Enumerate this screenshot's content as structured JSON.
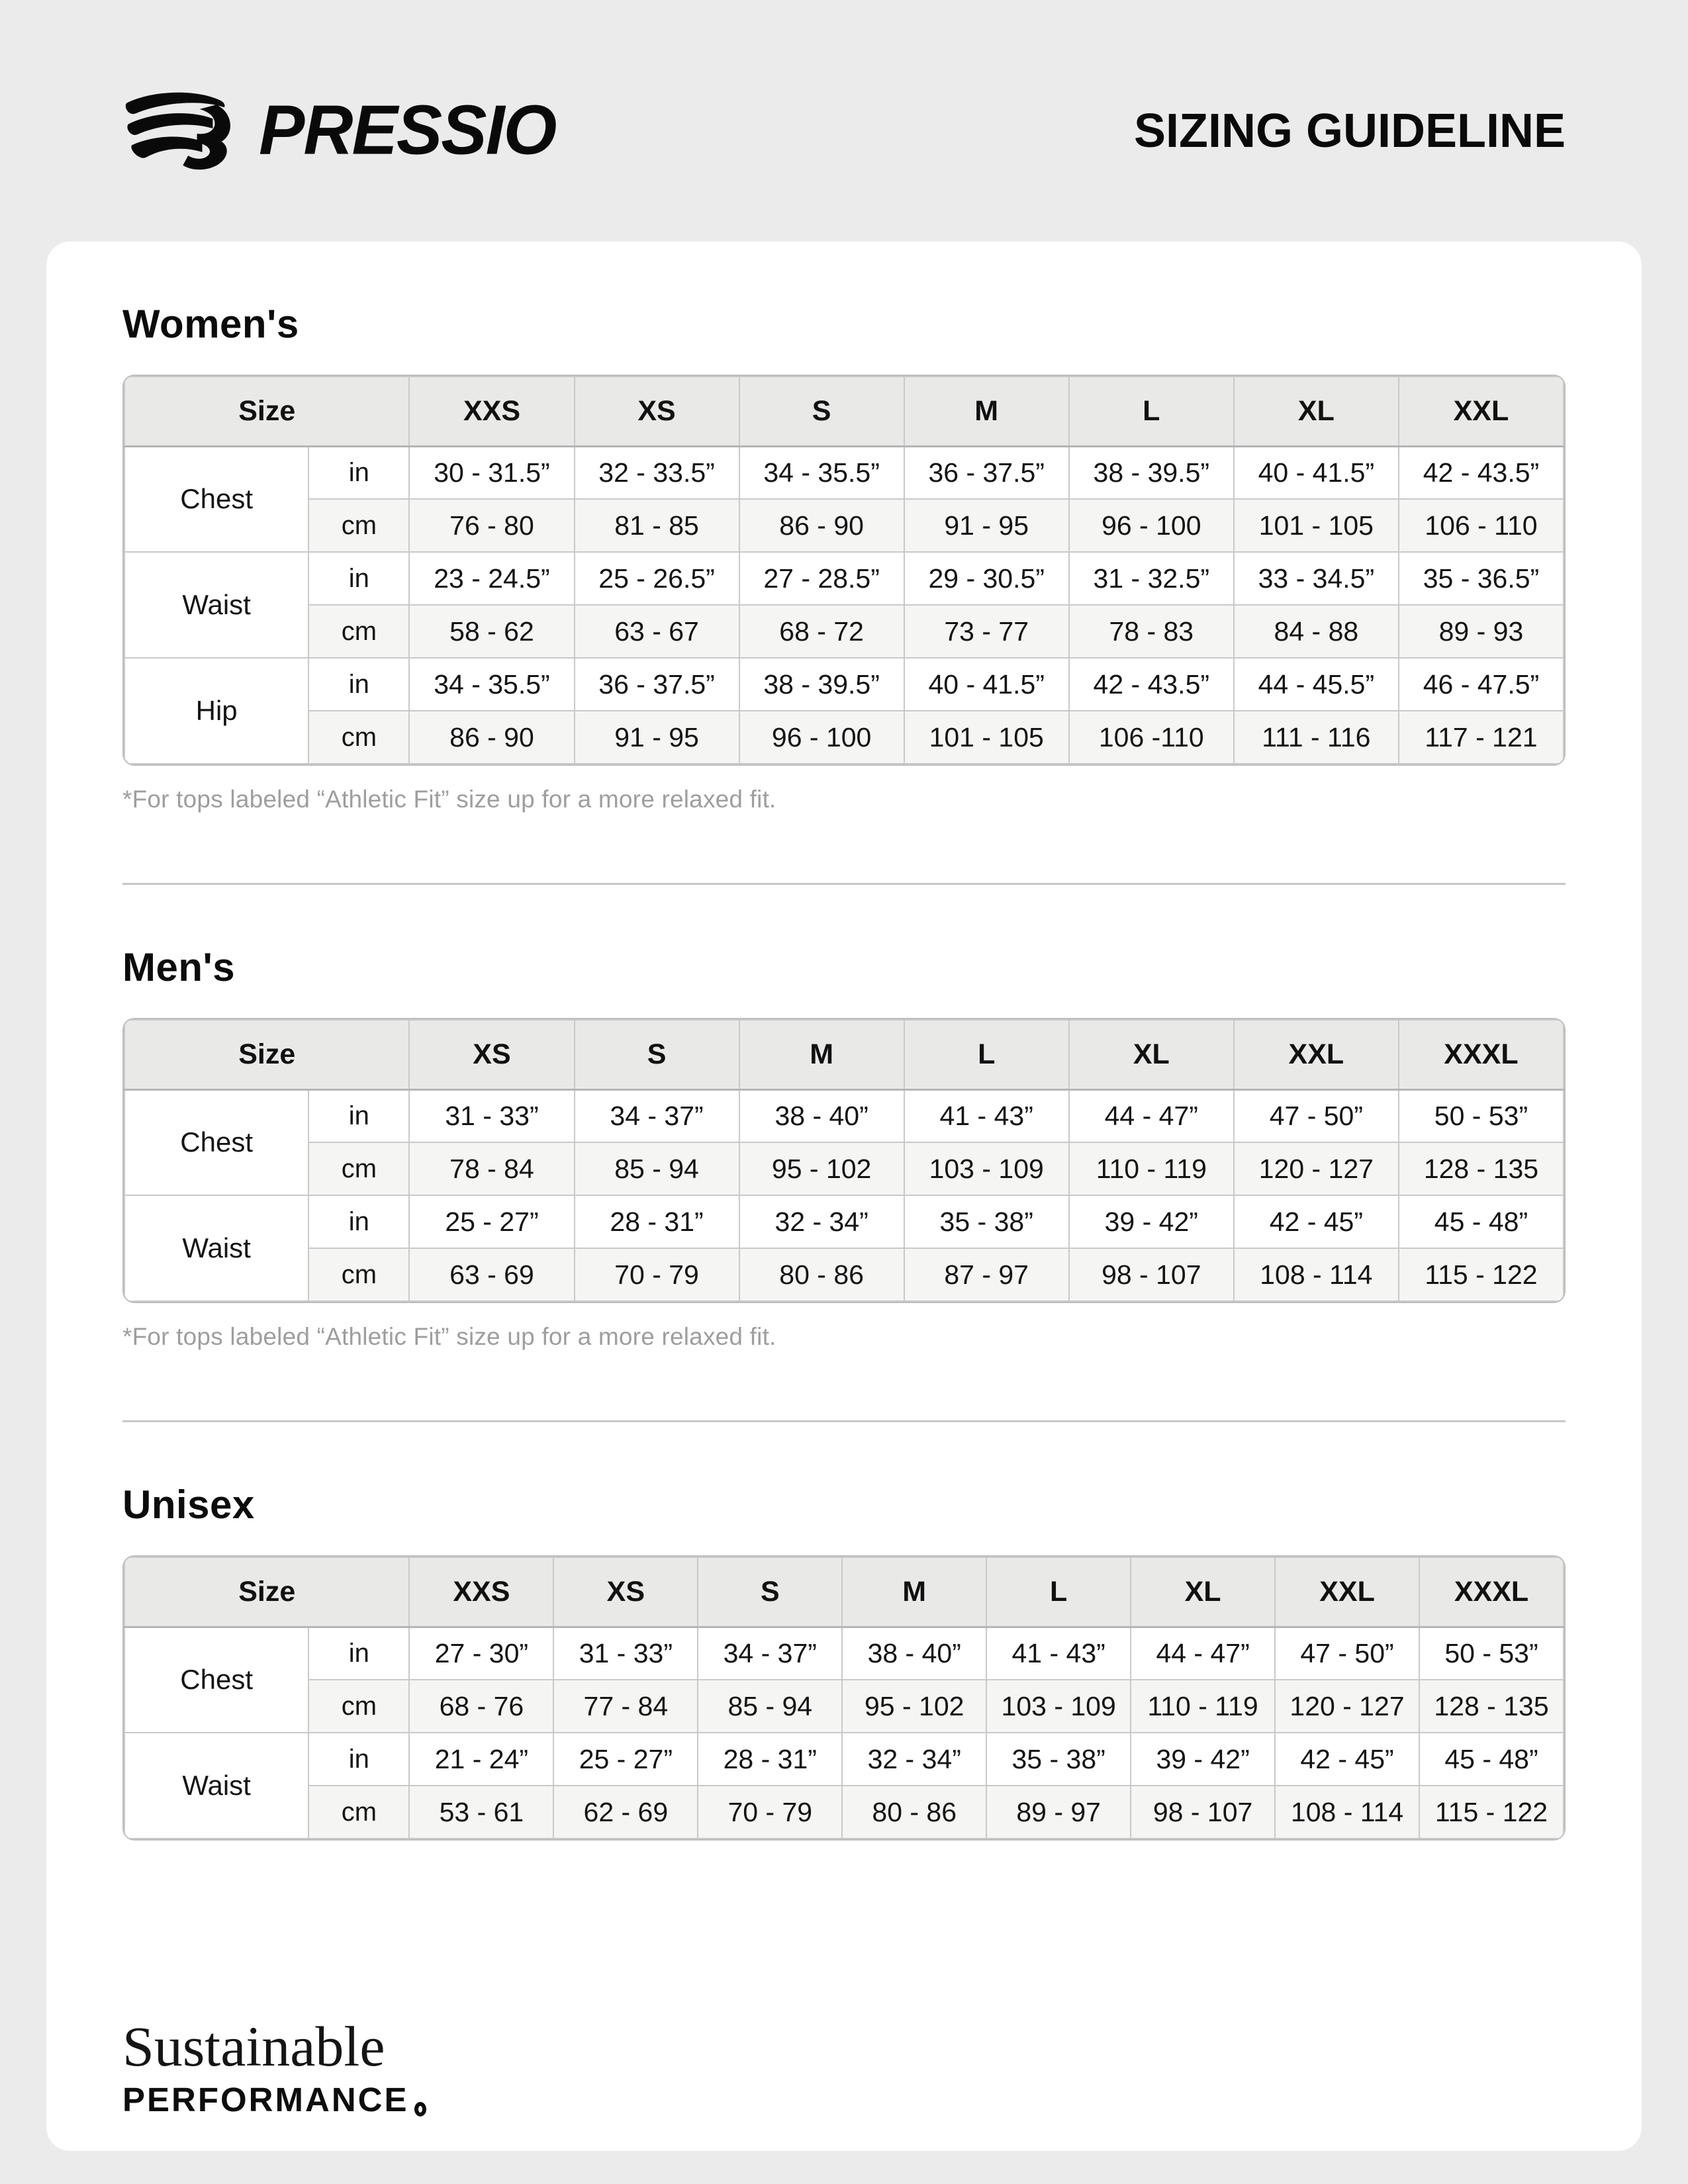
{
  "header": {
    "brand": "PRESSIO",
    "title": "SIZING GUIDELINE"
  },
  "palette": {
    "page_bg": "#ebebeb",
    "card_bg": "#ffffff",
    "table_header_bg": "#e9e9e8",
    "alt_row_bg": "#f5f5f4",
    "border": "#c9c9c9",
    "footnote_text": "#9e9e9e",
    "text": "#141414"
  },
  "size_label": "Size",
  "sections": [
    {
      "id": "womens",
      "title": "Women's",
      "sizes": [
        "XXS",
        "XS",
        "S",
        "M",
        "L",
        "XL",
        "XXL"
      ],
      "groups": [
        {
          "label": "Chest",
          "rows": [
            {
              "unit": "in",
              "values": [
                "30 - 31.5”",
                "32 - 33.5”",
                "34 - 35.5”",
                "36 - 37.5”",
                "38 - 39.5”",
                "40 - 41.5”",
                "42 - 43.5”"
              ]
            },
            {
              "unit": "cm",
              "values": [
                "76 - 80",
                "81 - 85",
                "86 - 90",
                "91 - 95",
                "96 - 100",
                "101 - 105",
                "106 - 110"
              ]
            }
          ]
        },
        {
          "label": "Waist",
          "rows": [
            {
              "unit": "in",
              "values": [
                "23 - 24.5”",
                "25 - 26.5”",
                "27 - 28.5”",
                "29 - 30.5”",
                "31 - 32.5”",
                "33 - 34.5”",
                "35 - 36.5”"
              ]
            },
            {
              "unit": "cm",
              "values": [
                "58 - 62",
                "63 - 67",
                "68 - 72",
                "73 - 77",
                "78 - 83",
                "84 - 88",
                "89 - 93"
              ]
            }
          ]
        },
        {
          "label": "Hip",
          "rows": [
            {
              "unit": "in",
              "values": [
                "34 - 35.5”",
                "36 - 37.5”",
                "38 - 39.5”",
                "40 - 41.5”",
                "42 - 43.5”",
                "44 - 45.5”",
                "46 - 47.5”"
              ]
            },
            {
              "unit": "cm",
              "values": [
                "86 - 90",
                "91 - 95",
                "96 - 100",
                "101 - 105",
                "106 -110",
                "111 - 116",
                "117 - 121"
              ]
            }
          ]
        }
      ],
      "footnote": "*For tops labeled “Athletic Fit” size up for a more relaxed fit."
    },
    {
      "id": "mens",
      "title": "Men's",
      "sizes": [
        "XS",
        "S",
        "M",
        "L",
        "XL",
        "XXL",
        "XXXL"
      ],
      "groups": [
        {
          "label": "Chest",
          "rows": [
            {
              "unit": "in",
              "values": [
                "31 - 33”",
                "34 - 37”",
                "38 - 40”",
                "41 - 43”",
                "44 - 47”",
                "47 - 50”",
                "50 - 53”"
              ]
            },
            {
              "unit": "cm",
              "values": [
                "78 - 84",
                "85 - 94",
                "95 - 102",
                "103 - 109",
                "110 - 119",
                "120 - 127",
                "128 - 135"
              ]
            }
          ]
        },
        {
          "label": "Waist",
          "rows": [
            {
              "unit": "in",
              "values": [
                "25 - 27”",
                "28 - 31”",
                "32 - 34”",
                "35 - 38”",
                "39 - 42”",
                "42 - 45”",
                "45 - 48”"
              ]
            },
            {
              "unit": "cm",
              "values": [
                "63 - 69",
                "70 - 79",
                "80 - 86",
                "87 - 97",
                "98 - 107",
                "108 - 114",
                "115 - 122"
              ]
            }
          ]
        }
      ],
      "footnote": "*For tops labeled “Athletic Fit” size up for a more relaxed fit."
    },
    {
      "id": "unisex",
      "title": "Unisex",
      "sizes": [
        "XXS",
        "XS",
        "S",
        "M",
        "L",
        "XL",
        "XXL",
        "XXXL"
      ],
      "groups": [
        {
          "label": "Chest",
          "rows": [
            {
              "unit": "in",
              "values": [
                "27 - 30”",
                "31 - 33”",
                "34 - 37”",
                "38 - 40”",
                "41 - 43”",
                "44 - 47”",
                "47 - 50”",
                "50 - 53”"
              ]
            },
            {
              "unit": "cm",
              "values": [
                "68 - 76",
                "77 - 84",
                "85 - 94",
                "95 - 102",
                "103 - 109",
                "110 - 119",
                "120 - 127",
                "128 - 135"
              ]
            }
          ]
        },
        {
          "label": "Waist",
          "rows": [
            {
              "unit": "in",
              "values": [
                "21 - 24”",
                "25 - 27”",
                "28 - 31”",
                "32 - 34”",
                "35 - 38”",
                "39 - 42”",
                "42 - 45”",
                "45 - 48”"
              ]
            },
            {
              "unit": "cm",
              "values": [
                "53 - 61",
                "62 - 69",
                "70 - 79",
                "80 - 86",
                "89 - 97",
                "98 - 107",
                "108 - 114",
                "115 - 122"
              ]
            }
          ]
        }
      ],
      "footnote": null
    }
  ],
  "footer": {
    "line1": "Sustainable",
    "line2": "PERFORMANCE"
  }
}
